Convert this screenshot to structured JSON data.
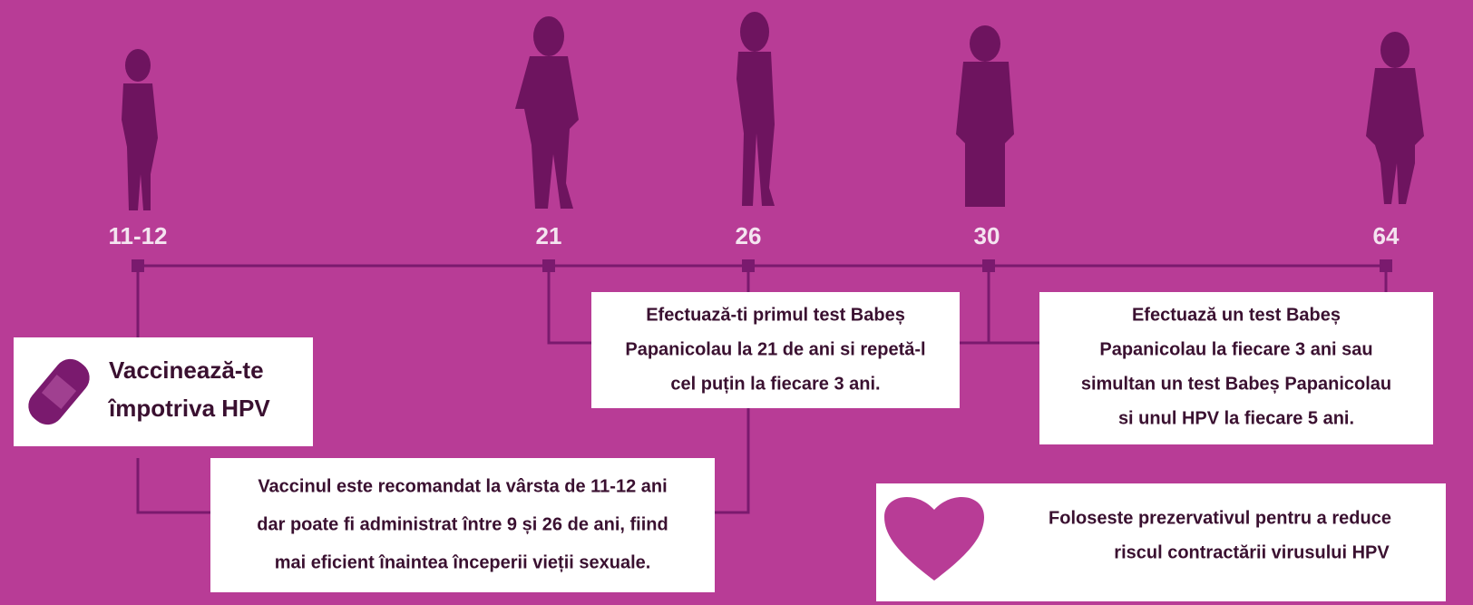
{
  "timeline": {
    "markers": [
      "11-12",
      "21",
      "26",
      "30",
      "64"
    ]
  },
  "boxes": [
    {
      "lines": [
        "Vaccinează-te",
        "împotriva HPV"
      ]
    },
    {
      "lines": [
        "Vaccinul este recomandat la vârsta de 11-12 ani",
        "dar poate fi administrat între 9 și 26 de ani, fiind",
        "mai eficient înaintea începerii vieții sexuale."
      ]
    },
    {
      "lines": [
        "Efectuază-ti primul test Babeș",
        "Papanicolau la 21 de ani si repetă-l",
        "cel puțin la fiecare 3 ani."
      ]
    },
    {
      "lines": [
        "Efectuază un test Babeș",
        "Papanicolau la fiecare 3 ani sau",
        "simultan un test Babeș Papanicolau",
        "si unul HPV la fiecare 5 ani."
      ]
    },
    {
      "lines": [
        "Foloseste prezervativul pentru a reduce",
        "riscul contractării virusului HPV"
      ]
    }
  ]
}
